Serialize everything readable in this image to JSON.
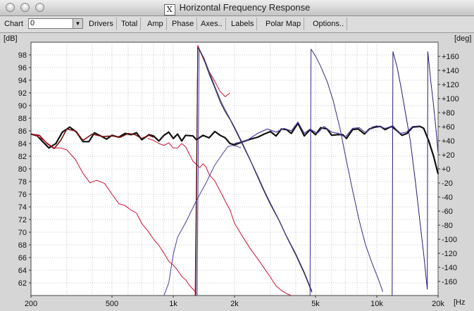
{
  "window": {
    "title": "Horizontal Frequency Response",
    "x_glyph": "X"
  },
  "toolbar": {
    "chart_label": "Chart",
    "chart_value": "0",
    "drivers": "Drivers",
    "total": "Total",
    "amp": "Amp",
    "phase": "Phase",
    "axes": "Axes..",
    "labels": "Labels",
    "polar_map": "Polar Map",
    "options": "Options.."
  },
  "chart_data": {
    "type": "line",
    "xscale": "log",
    "xlim": [
      200,
      20000
    ],
    "ylim_left": [
      60,
      100
    ],
    "ylim_right": [
      -180,
      180
    ],
    "left_unit": "[dB]",
    "right_unit": "[deg]",
    "x_unit": "[Hz",
    "x_ticks": [
      {
        "v": 200,
        "l": "200"
      },
      {
        "v": 500,
        "l": "500"
      },
      {
        "v": 1000,
        "l": "1k"
      },
      {
        "v": 2000,
        "l": "2k"
      },
      {
        "v": 5000,
        "l": "5k"
      },
      {
        "v": 10000,
        "l": "10k"
      },
      {
        "v": 20000,
        "l": "20k"
      }
    ],
    "left_ticks": [
      62,
      64,
      66,
      68,
      70,
      72,
      74,
      76,
      78,
      80,
      82,
      84,
      86,
      88,
      90,
      92,
      94,
      96,
      98
    ],
    "right_ticks": [
      {
        "v": 160,
        "l": "+160"
      },
      {
        "v": 140,
        "l": "+140"
      },
      {
        "v": 120,
        "l": "+120"
      },
      {
        "v": 100,
        "l": "+100"
      },
      {
        "v": 80,
        "l": "+80"
      },
      {
        "v": 60,
        "l": "+60"
      },
      {
        "v": 40,
        "l": "+40"
      },
      {
        "v": 20,
        "l": "+20"
      },
      {
        "v": 0,
        "l": "+0"
      },
      {
        "v": -20,
        "l": "-20"
      },
      {
        "v": -40,
        "l": "-40"
      },
      {
        "v": -60,
        "l": "-60"
      },
      {
        "v": -80,
        "l": "-80"
      },
      {
        "v": -100,
        "l": "-100"
      },
      {
        "v": -120,
        "l": "-120"
      },
      {
        "v": -140,
        "l": "-140"
      },
      {
        "v": -160,
        "l": "-160"
      }
    ],
    "grid": true,
    "series": [
      {
        "color": "#111111",
        "width": 2.2,
        "axis": "left",
        "points": [
          [
            200,
            85.5
          ],
          [
            215,
            85.2
          ],
          [
            230,
            84.2
          ],
          [
            245,
            83.3
          ],
          [
            265,
            84.0
          ],
          [
            285,
            85.8
          ],
          [
            310,
            86.6
          ],
          [
            335,
            85.8
          ],
          [
            360,
            84.3
          ],
          [
            385,
            84.3
          ],
          [
            410,
            85.7
          ],
          [
            440,
            85.2
          ],
          [
            470,
            84.7
          ],
          [
            500,
            85.3
          ],
          [
            540,
            85.0
          ],
          [
            580,
            85.6
          ],
          [
            620,
            85.4
          ],
          [
            660,
            85.7
          ],
          [
            700,
            84.6
          ],
          [
            760,
            85.4
          ],
          [
            800,
            85.2
          ],
          [
            850,
            84.4
          ],
          [
            900,
            85.3
          ],
          [
            950,
            85.8
          ],
          [
            1000,
            84.8
          ],
          [
            1050,
            85.5
          ],
          [
            1100,
            84.4
          ],
          [
            1150,
            85.3
          ],
          [
            1250,
            85.2
          ],
          [
            1300,
            84.6
          ],
          [
            1400,
            85.3
          ],
          [
            1500,
            84.9
          ],
          [
            1600,
            85.9
          ],
          [
            1700,
            85.3
          ],
          [
            1800,
            84.9
          ],
          [
            1900,
            84.0
          ],
          [
            2000,
            83.8
          ],
          [
            2200,
            84.3
          ],
          [
            2400,
            84.7
          ],
          [
            2600,
            85.0
          ],
          [
            2800,
            85.5
          ],
          [
            3000,
            85.9
          ],
          [
            3200,
            85.2
          ],
          [
            3400,
            86.3
          ],
          [
            3600,
            86.2
          ],
          [
            3800,
            85.6
          ],
          [
            4100,
            87.2
          ],
          [
            4400,
            85.2
          ],
          [
            4700,
            86.2
          ],
          [
            5000,
            85.4
          ],
          [
            5300,
            86.5
          ],
          [
            5700,
            86.3
          ],
          [
            6000,
            85.3
          ],
          [
            6400,
            85.4
          ],
          [
            6800,
            85.4
          ],
          [
            7100,
            84.8
          ],
          [
            7600,
            86.2
          ],
          [
            8100,
            86.3
          ],
          [
            8700,
            85.5
          ],
          [
            9200,
            86.3
          ],
          [
            9800,
            86.6
          ],
          [
            10400,
            86.7
          ],
          [
            11000,
            86.2
          ],
          [
            11800,
            86.7
          ],
          [
            12500,
            86.1
          ],
          [
            13300,
            85.3
          ],
          [
            14100,
            85.6
          ],
          [
            15000,
            86.6
          ],
          [
            16300,
            86.7
          ],
          [
            17000,
            86.4
          ],
          [
            18000,
            84.4
          ],
          [
            19000,
            82.0
          ],
          [
            20000,
            79.2
          ]
        ]
      },
      {
        "color": "#7a1010",
        "width": 1.6,
        "axis": "left",
        "points": [
          [
            200,
            85.5
          ],
          [
            220,
            85.3
          ],
          [
            240,
            84.0
          ],
          [
            260,
            83.2
          ],
          [
            280,
            84.5
          ],
          [
            300,
            86.3
          ],
          [
            330,
            86.0
          ],
          [
            360,
            84.5
          ],
          [
            400,
            85.5
          ],
          [
            450,
            85.1
          ],
          [
            500,
            85.2
          ],
          [
            550,
            85.0
          ],
          [
            600,
            85.6
          ],
          [
            650,
            85.4
          ],
          [
            700,
            84.8
          ],
          [
            760,
            85.3
          ],
          [
            800,
            85.0
          ]
        ]
      },
      {
        "color": "#4a3fa0",
        "width": 1.2,
        "axis": "left",
        "points": [
          [
            2000,
            84.0
          ],
          [
            2300,
            84.5
          ],
          [
            2600,
            85.6
          ],
          [
            2900,
            86.3
          ],
          [
            3200,
            85.8
          ],
          [
            3500,
            86.4
          ],
          [
            3800,
            86.0
          ],
          [
            4100,
            87.4
          ],
          [
            4400,
            85.6
          ],
          [
            4700,
            86.3
          ],
          [
            5100,
            85.6
          ],
          [
            5500,
            86.7
          ],
          [
            6000,
            85.8
          ],
          [
            6500,
            85.6
          ],
          [
            7000,
            85.0
          ],
          [
            7600,
            86.4
          ],
          [
            8200,
            86.5
          ],
          [
            8800,
            85.7
          ],
          [
            9500,
            86.6
          ],
          [
            10000,
            86.8
          ],
          [
            11000,
            86.4
          ],
          [
            12000,
            86.8
          ],
          [
            13000,
            85.6
          ],
          [
            14000,
            85.8
          ],
          [
            15000,
            86.7
          ],
          [
            16300,
            86.8
          ]
        ]
      },
      {
        "color": "#cc1133",
        "width": 1.0,
        "axis": "left",
        "points": [
          [
            200,
            85.6
          ],
          [
            220,
            85.0
          ],
          [
            240,
            84.1
          ],
          [
            260,
            83.3
          ],
          [
            280,
            83.3
          ],
          [
            300,
            83.0
          ],
          [
            330,
            81.5
          ],
          [
            360,
            79.3
          ],
          [
            390,
            77.8
          ],
          [
            420,
            78.2
          ],
          [
            460,
            77.7
          ],
          [
            500,
            76.0
          ],
          [
            540,
            74.5
          ],
          [
            580,
            74.2
          ],
          [
            620,
            73.5
          ],
          [
            660,
            73.0
          ],
          [
            700,
            71.4
          ],
          [
            750,
            70.2
          ],
          [
            800,
            68.9
          ],
          [
            850,
            67.9
          ],
          [
            900,
            66.7
          ],
          [
            950,
            65.4
          ],
          [
            1000,
            64.8
          ],
          [
            1050,
            64.0
          ],
          [
            1100,
            63.0
          ],
          [
            1150,
            62.5
          ],
          [
            1200,
            61.6
          ],
          [
            1250,
            61.0
          ],
          [
            1300,
            60.4
          ]
        ]
      },
      {
        "color": "#cc1133",
        "width": 1.0,
        "axis": "left",
        "points": [
          [
            750,
            84.8
          ],
          [
            800,
            84.5
          ],
          [
            850,
            84.0
          ],
          [
            900,
            83.7
          ],
          [
            950,
            84.1
          ],
          [
            1000,
            83.3
          ],
          [
            1050,
            83.3
          ],
          [
            1100,
            84.0
          ],
          [
            1150,
            83.5
          ],
          [
            1200,
            82.3
          ],
          [
            1250,
            81.2
          ],
          [
            1300,
            80.7
          ],
          [
            1350,
            80.2
          ],
          [
            1400,
            80.8
          ],
          [
            1450,
            80.3
          ],
          [
            1500,
            79.1
          ],
          [
            1600,
            78.1
          ],
          [
            1700,
            76.5
          ],
          [
            1800,
            74.9
          ],
          [
            1900,
            73.5
          ],
          [
            2000,
            71.4
          ],
          [
            2200,
            69.2
          ],
          [
            2400,
            67.3
          ],
          [
            2600,
            65.8
          ],
          [
            2800,
            64.3
          ],
          [
            3000,
            62.9
          ],
          [
            3200,
            61.5
          ],
          [
            3400,
            60.8
          ],
          [
            3600,
            60.3
          ],
          [
            3800,
            60.0
          ]
        ]
      },
      {
        "color": "#cc1133",
        "width": 1.0,
        "axis": "left",
        "points": [
          [
            1280,
            60.0
          ],
          [
            1320,
            99.5
          ],
          [
            1400,
            97.5
          ],
          [
            1500,
            95.4
          ],
          [
            1600,
            93.8
          ],
          [
            1700,
            92.2
          ],
          [
            1800,
            91.4
          ],
          [
            1900,
            92.0
          ]
        ]
      },
      {
        "color": "#222222",
        "width": 1.1,
        "axis": "left",
        "points": [
          [
            1290,
            60.0
          ],
          [
            1320,
            99.2
          ],
          [
            1400,
            97.7
          ],
          [
            1500,
            95.0
          ],
          [
            1600,
            92.8
          ],
          [
            1700,
            90.6
          ],
          [
            1800,
            89.0
          ],
          [
            1900,
            87.8
          ],
          [
            2000,
            86.4
          ],
          [
            2200,
            83.7
          ],
          [
            2400,
            81.2
          ],
          [
            2600,
            78.7
          ],
          [
            2800,
            76.4
          ],
          [
            3000,
            74.4
          ],
          [
            3300,
            71.9
          ],
          [
            3600,
            69.3
          ],
          [
            4000,
            66.4
          ],
          [
            4400,
            63.5
          ],
          [
            4800,
            60.5
          ]
        ]
      },
      {
        "color": "#4a3fa0",
        "width": 1.0,
        "axis": "left",
        "points": [
          [
            1310,
            60.0
          ],
          [
            1340,
            99.0
          ],
          [
            1420,
            97.4
          ],
          [
            1520,
            94.9
          ],
          [
            1620,
            92.6
          ],
          [
            1730,
            90.4
          ],
          [
            1850,
            88.6
          ],
          [
            2000,
            86.6
          ],
          [
            2200,
            83.9
          ],
          [
            2400,
            81.3
          ],
          [
            2600,
            78.9
          ],
          [
            2800,
            76.6
          ],
          [
            3000,
            74.6
          ],
          [
            3300,
            72.0
          ],
          [
            3600,
            69.4
          ],
          [
            4000,
            66.6
          ],
          [
            4400,
            63.7
          ],
          [
            4800,
            60.7
          ]
        ]
      },
      {
        "color": "#3a2a8a",
        "width": 1.0,
        "axis": "left",
        "points": [
          [
            4700,
            60.0
          ],
          [
            4750,
            98.9
          ],
          [
            5000,
            97.8
          ],
          [
            5300,
            96.2
          ],
          [
            5700,
            93.8
          ],
          [
            6100,
            90.8
          ],
          [
            6600,
            86.3
          ],
          [
            7100,
            81.2
          ],
          [
            7600,
            76.6
          ],
          [
            8200,
            71.8
          ],
          [
            8800,
            68.0
          ],
          [
            9500,
            65.0
          ],
          [
            10200,
            62.5
          ],
          [
            10700,
            60.6
          ]
        ]
      },
      {
        "color": "#4a3fa0",
        "width": 1.0,
        "axis": "left",
        "points": [
          [
            900,
            60.0
          ],
          [
            950,
            62.0
          ],
          [
            1000,
            66.5
          ],
          [
            1050,
            69.2
          ],
          [
            1150,
            71.5
          ],
          [
            1300,
            75.0
          ],
          [
            1450,
            77.8
          ],
          [
            1600,
            80.6
          ],
          [
            1750,
            82.4
          ],
          [
            1850,
            83.5
          ],
          [
            1950,
            83.7
          ],
          [
            2050,
            83.6
          ],
          [
            2150,
            83.3
          ]
        ]
      },
      {
        "color": "#2a1a7a",
        "width": 1.0,
        "axis": "left",
        "points": [
          [
            11900,
            60.0
          ],
          [
            12000,
            98.5
          ],
          [
            12600,
            96.0
          ],
          [
            13200,
            92.6
          ],
          [
            13800,
            89.0
          ],
          [
            14600,
            84.5
          ],
          [
            15500,
            77.8
          ],
          [
            16300,
            71.6
          ],
          [
            17000,
            66.5
          ],
          [
            17500,
            62.6
          ],
          [
            17700,
            61.0
          ],
          [
            17800,
            98.5
          ],
          [
            18400,
            94.0
          ],
          [
            19000,
            90.0
          ],
          [
            19500,
            86.5
          ],
          [
            20000,
            82.5
          ]
        ]
      }
    ]
  }
}
